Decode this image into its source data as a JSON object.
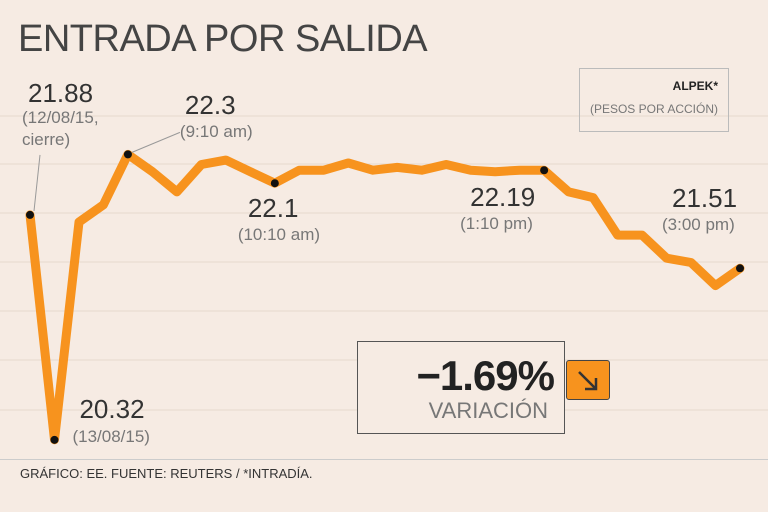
{
  "chart_data": {
    "type": "line",
    "title": "ENTRADA POR SALIDA",
    "series": [
      {
        "name": "ALPEK*",
        "color": "#f7931e",
        "values": [
          21.88,
          20.32,
          21.83,
          21.95,
          22.3,
          22.18,
          22.04,
          22.23,
          22.26,
          22.18,
          22.1,
          22.19,
          22.19,
          22.24,
          22.19,
          22.21,
          22.19,
          22.23,
          22.19,
          22.18,
          22.19,
          22.19,
          22.04,
          22.0,
          21.74,
          21.74,
          21.58,
          21.55,
          21.39,
          21.51
        ]
      }
    ],
    "categories": [
      null,
      null,
      null,
      null,
      null,
      null,
      null,
      null,
      null,
      null,
      null,
      null,
      null,
      null,
      null,
      null,
      null,
      null,
      null,
      null,
      null,
      null,
      null,
      null,
      null,
      null,
      null,
      null,
      null,
      null
    ],
    "ylim": [
      20.18,
      22.92
    ],
    "subtitle": "(PESOS POR ACCIÓN)",
    "annotations": [
      "(12/08/15, cierre)",
      "(13/08/15)",
      "(9:10 am)",
      "(10:10 am)",
      "(1:10 pm)",
      "(3:00 pm)"
    ],
    "change": {
      "value": -1.69,
      "value_label": "−1.69%",
      "label": "VARIACIÓN"
    },
    "source": "GRÁFICO: EE. FUENTE: REUTERS / *INTRADÍA."
  }
}
